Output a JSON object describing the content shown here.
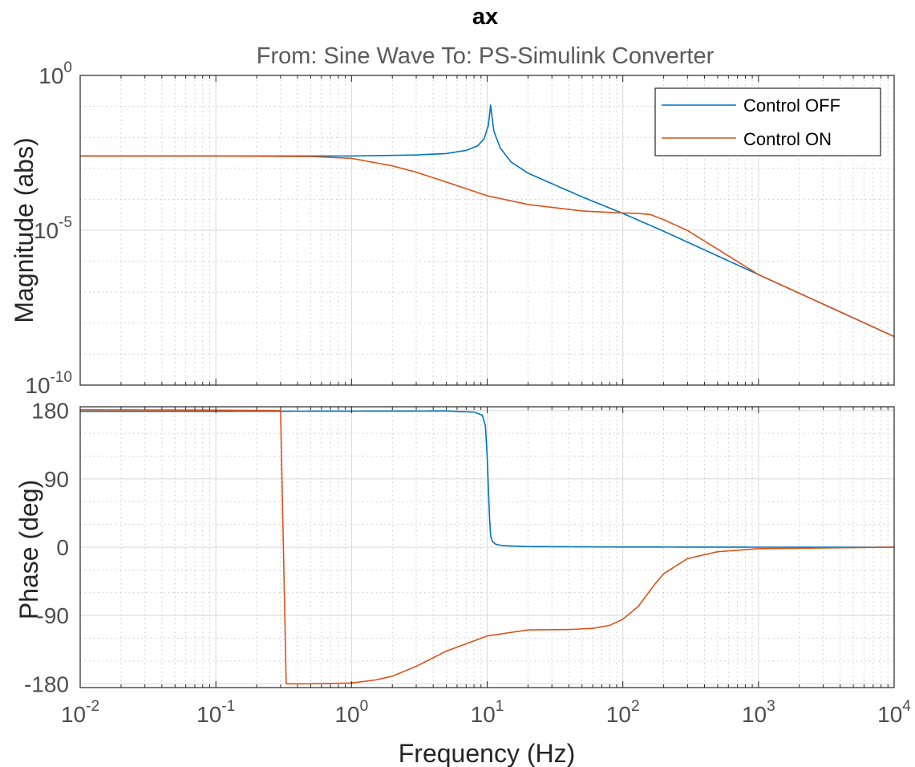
{
  "figure": {
    "title": "ax",
    "subtitle": "From: Sine Wave  To: PS-Simulink Converter",
    "xlabel": "Frequency  (Hz)"
  },
  "colors": {
    "control_off": "#0072BD",
    "control_on": "#D95319",
    "grid_major": "#d9d9d9",
    "grid_minor": "#c8c8c8",
    "axes": "#262626"
  },
  "chart_data": [
    {
      "type": "line",
      "name": "magnitude",
      "ylabel": "Magnitude (abs)",
      "xscale": "log",
      "yscale": "log",
      "xlim": [
        0.01,
        10000
      ],
      "ylim": [
        1e-10,
        1
      ],
      "xtick_labels": [
        {
          "base": "10",
          "exp": "-2"
        },
        {
          "base": "10",
          "exp": "-1"
        },
        {
          "base": "10",
          "exp": "0"
        },
        {
          "base": "10",
          "exp": "1"
        },
        {
          "base": "10",
          "exp": "2"
        },
        {
          "base": "10",
          "exp": "3"
        },
        {
          "base": "10",
          "exp": "4"
        }
      ],
      "ytick_labels": [
        {
          "value": 1,
          "base": "10",
          "exp": "0"
        },
        {
          "value": 1e-05,
          "base": "10",
          "exp": "-5"
        },
        {
          "value": 1e-10,
          "base": "10",
          "exp": "-10"
        }
      ],
      "grid": true,
      "minor_grid": true,
      "legend_position": "top-right",
      "series": [
        {
          "name": "Control OFF",
          "x": [
            0.01,
            0.1,
            1,
            3,
            5,
            7,
            8.5,
            9.5,
            10.2,
            10.6,
            11.2,
            12.5,
            15,
            20,
            30,
            50,
            100,
            200,
            1000,
            10000
          ],
          "y": [
            0.0025,
            0.0025,
            0.0025,
            0.0027,
            0.003,
            0.0038,
            0.0053,
            0.009,
            0.024,
            0.11,
            0.016,
            0.0045,
            0.0016,
            0.0007,
            0.00032,
            0.00012,
            3.5e-05,
            9.3e-06,
            3.7e-07,
            3.7e-09
          ]
        },
        {
          "name": "Control ON",
          "x": [
            0.01,
            0.1,
            0.5,
            1,
            2,
            3,
            5,
            7,
            10,
            20,
            50,
            100,
            130,
            160,
            200,
            300,
            1000,
            10000
          ],
          "y": [
            0.0025,
            0.0025,
            0.0024,
            0.0021,
            0.0012,
            0.00075,
            0.00036,
            0.00022,
            0.00013,
            6.8e-05,
            4.2e-05,
            3.6e-05,
            3.5e-05,
            3.2e-05,
            2.2e-05,
            9.8e-06,
            3.7e-07,
            3.7e-09
          ]
        }
      ]
    },
    {
      "type": "line",
      "name": "phase",
      "ylabel": "Phase (deg)",
      "xscale": "log",
      "xlim": [
        0.01,
        10000
      ],
      "ylim": [
        -185,
        185
      ],
      "yticks": [
        180,
        90,
        0,
        -90,
        -180
      ],
      "ytick_labels": [
        "180",
        "90",
        "0",
        "-90",
        "-180"
      ],
      "grid": true,
      "minor_grid": true,
      "series": [
        {
          "name": "Control OFF",
          "x": [
            0.01,
            0.1,
            1,
            5,
            8,
            9.2,
            9.7,
            10.0,
            10.2,
            10.4,
            10.6,
            10.9,
            11.5,
            13,
            20,
            100,
            1000,
            10000
          ],
          "y": [
            179,
            179,
            179.3,
            179.5,
            178,
            174,
            160,
            120,
            80,
            40,
            15,
            8,
            4,
            2,
            0.8,
            0.2,
            0,
            0
          ]
        },
        {
          "name": "Control ON",
          "x": [
            0.01,
            0.1,
            0.29,
            0.3,
            0.33,
            0.5,
            1,
            1.5,
            2,
            3,
            5,
            10,
            20,
            40,
            60,
            80,
            100,
            130,
            170,
            200,
            300,
            500,
            1000,
            10000
          ],
          "y": [
            181,
            180.5,
            180,
            180,
            -180,
            -180,
            -179,
            -175,
            -170,
            -157,
            -137,
            -117,
            -109,
            -108.5,
            -107,
            -103,
            -95,
            -78,
            -50,
            -35,
            -15,
            -6,
            -2,
            0
          ]
        }
      ]
    }
  ]
}
